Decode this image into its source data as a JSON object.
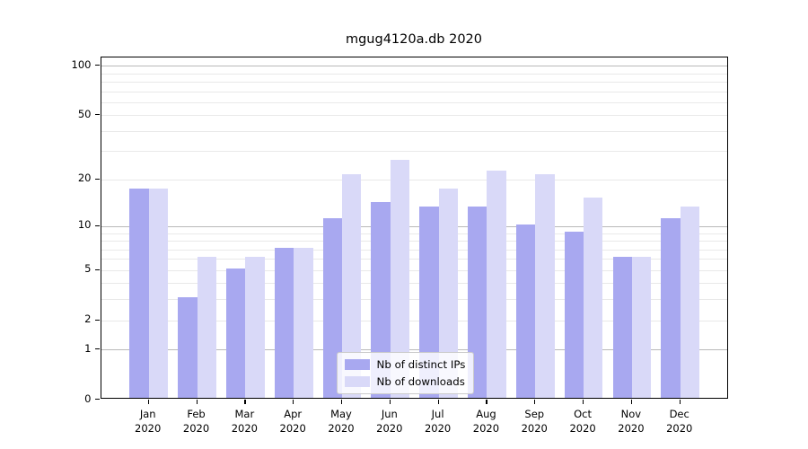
{
  "chart_data": {
    "type": "bar",
    "title": "mgug4120a.db 2020",
    "xlabel": "",
    "ylabel": "",
    "yscale": "log1p",
    "ylim": [
      0,
      113
    ],
    "y_ticks": [
      0,
      1,
      2,
      5,
      10,
      20,
      50,
      100
    ],
    "grid": "horizontal, log minor + major",
    "legend_position": "lower center, inside plot",
    "categories": [
      "Jan",
      "Feb",
      "Mar",
      "Apr",
      "May",
      "Jun",
      "Jul",
      "Aug",
      "Sep",
      "Oct",
      "Nov",
      "Dec"
    ],
    "year_label": "2020",
    "series": [
      {
        "name": "Nb of distinct IPs",
        "color": "#a8a8f0",
        "values": [
          17,
          3,
          5,
          7,
          11,
          14,
          13,
          13,
          10,
          9,
          6,
          11
        ]
      },
      {
        "name": "Nb of downloads",
        "color": "#d9d9f8",
        "values": [
          17,
          6,
          6,
          7,
          21,
          26,
          17,
          22,
          21,
          15,
          6,
          13
        ]
      }
    ],
    "colors": {
      "major_grid": "#b9b9b9",
      "minor_grid": "#e9e9e9",
      "spine": "#000000",
      "background": "#ffffff"
    }
  }
}
